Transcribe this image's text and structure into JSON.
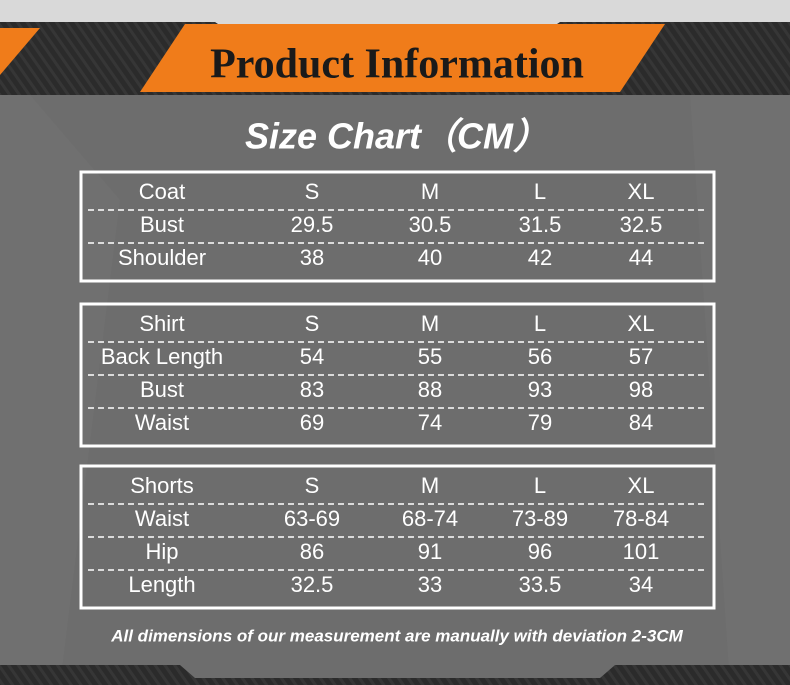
{
  "header": {
    "title": "Product Information"
  },
  "subtitle": "Size Chart（CM）",
  "tables": [
    {
      "rows": [
        [
          "Coat",
          "S",
          "M",
          "L",
          "XL"
        ],
        [
          "Bust",
          "29.5",
          "30.5",
          "31.5",
          "32.5"
        ],
        [
          "Shoulder",
          "38",
          "40",
          "42",
          "44"
        ]
      ]
    },
    {
      "rows": [
        [
          "Shirt",
          "S",
          "M",
          "L",
          "XL"
        ],
        [
          "Back Length",
          "54",
          "55",
          "56",
          "57"
        ],
        [
          "Bust",
          "83",
          "88",
          "93",
          "98"
        ],
        [
          "Waist",
          "69",
          "74",
          "79",
          "84"
        ]
      ]
    },
    {
      "rows": [
        [
          "Shorts",
          "S",
          "M",
          "L",
          "XL"
        ],
        [
          "Waist",
          "63-69",
          "68-74",
          "73-89",
          "78-84"
        ],
        [
          "Hip",
          "86",
          "91",
          "96",
          "101"
        ],
        [
          "Length",
          "32.5",
          "33",
          "33.5",
          "34"
        ]
      ]
    }
  ],
  "footnote": "All dimensions of our measurement are manually with deviation 2-3CM"
}
